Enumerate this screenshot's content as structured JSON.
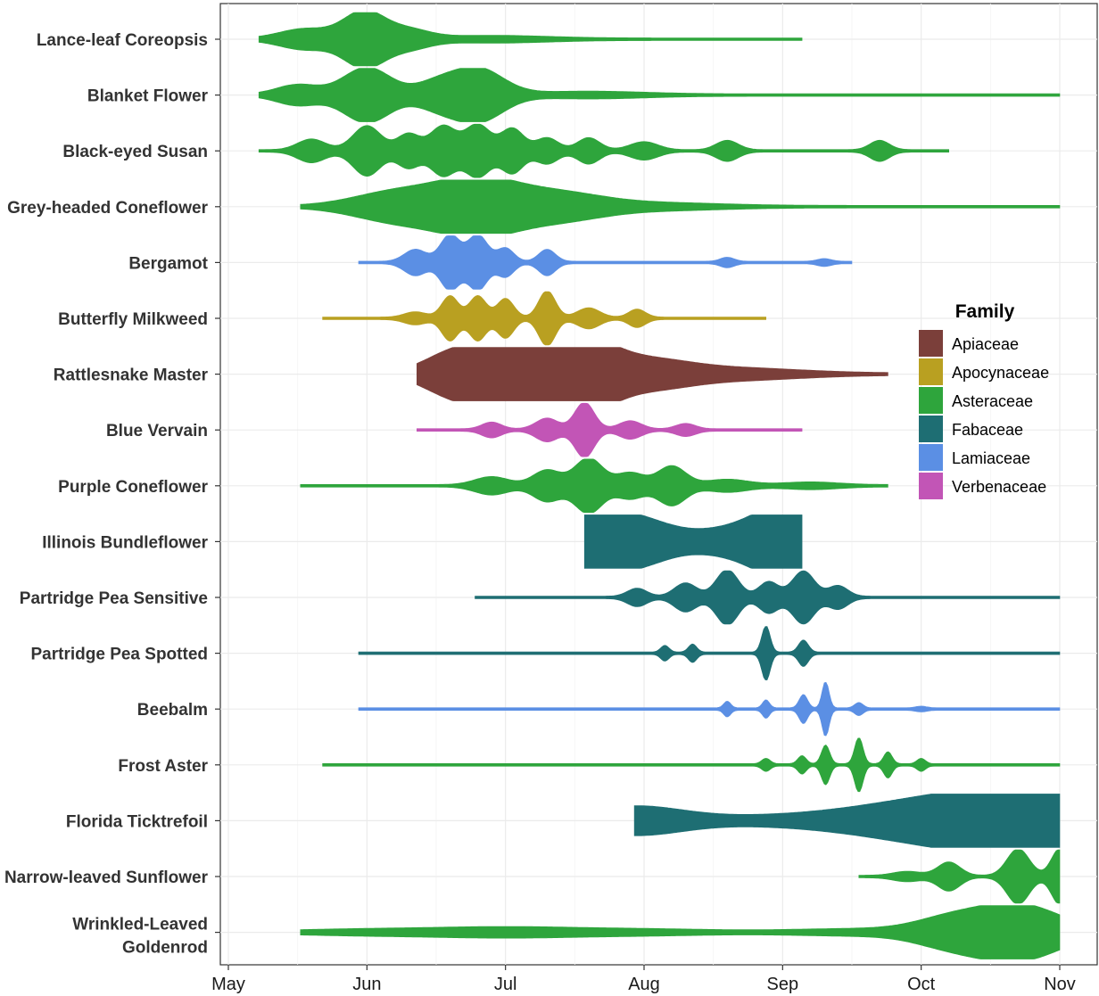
{
  "chart_data": {
    "type": "violin",
    "title": "",
    "xlabel": "",
    "ylabel": "",
    "x_ticks": [
      "May",
      "Jun",
      "Jul",
      "Aug",
      "Sep",
      "Oct",
      "Nov"
    ],
    "x_range_months": [
      0,
      6
    ],
    "grid": true,
    "legend": {
      "title": "Family",
      "placement": "right",
      "entries": [
        {
          "name": "Apiaceae",
          "color": "#7b3f3a"
        },
        {
          "name": "Apocynaceae",
          "color": "#b9a021"
        },
        {
          "name": "Asteraceae",
          "color": "#2ea53c"
        },
        {
          "name": "Fabaceae",
          "color": "#1e6e73"
        },
        {
          "name": "Lamiaceae",
          "color": "#5b8fe4"
        },
        {
          "name": "Verbenaceae",
          "color": "#c255b6"
        }
      ]
    },
    "series": [
      {
        "label": "Lance-leaf Coreopsis",
        "family": "Asteraceae",
        "start": 0.22,
        "end": 4.14,
        "peaks": [
          [
            0.55,
            0.35,
            0.18
          ],
          [
            0.98,
            1.0,
            0.15
          ],
          [
            1.3,
            0.3,
            0.15
          ],
          [
            1.9,
            0.1,
            0.4
          ]
        ]
      },
      {
        "label": "Blanket Flower",
        "family": "Asteraceae",
        "start": 0.22,
        "end": 6.0,
        "peaks": [
          [
            0.5,
            0.35,
            0.15
          ],
          [
            1.0,
            1.0,
            0.17
          ],
          [
            1.5,
            0.4,
            0.15
          ],
          [
            1.8,
            0.95,
            0.18
          ],
          [
            2.6,
            0.1,
            0.4
          ]
        ]
      },
      {
        "label": "Black-eyed Susan",
        "family": "Asteraceae",
        "start": 0.22,
        "end": 5.2,
        "peaks": [
          [
            0.6,
            0.4,
            0.1
          ],
          [
            1.0,
            0.9,
            0.1
          ],
          [
            1.3,
            0.6,
            0.08
          ],
          [
            1.55,
            0.9,
            0.09
          ],
          [
            1.8,
            0.95,
            0.09
          ],
          [
            2.05,
            0.8,
            0.08
          ],
          [
            2.3,
            0.45,
            0.08
          ],
          [
            2.6,
            0.45,
            0.08
          ],
          [
            3.0,
            0.3,
            0.1
          ],
          [
            3.6,
            0.35,
            0.08
          ],
          [
            4.7,
            0.35,
            0.07
          ]
        ]
      },
      {
        "label": "Grey-headed Coneflower",
        "family": "Asteraceae",
        "start": 0.52,
        "end": 6.0,
        "peaks": [
          [
            1.2,
            0.5,
            0.3
          ],
          [
            1.8,
            1.0,
            0.3
          ],
          [
            2.4,
            0.4,
            0.3
          ],
          [
            3.0,
            0.12,
            0.5
          ]
        ]
      },
      {
        "label": "Bergamot",
        "family": "Lamiaceae",
        "start": 0.94,
        "end": 4.5,
        "peaks": [
          [
            1.35,
            0.45,
            0.08
          ],
          [
            1.6,
            1.0,
            0.07
          ],
          [
            1.8,
            1.0,
            0.07
          ],
          [
            2.0,
            0.5,
            0.06
          ],
          [
            2.3,
            0.45,
            0.06
          ],
          [
            3.6,
            0.15,
            0.05
          ],
          [
            4.3,
            0.1,
            0.05
          ]
        ]
      },
      {
        "label": "Butterfly Milkweed",
        "family": "Apocynaceae",
        "start": 0.68,
        "end": 3.88,
        "peaks": [
          [
            1.35,
            0.2,
            0.08
          ],
          [
            1.6,
            0.8,
            0.06
          ],
          [
            1.8,
            0.8,
            0.06
          ],
          [
            2.0,
            0.7,
            0.06
          ],
          [
            2.3,
            1.0,
            0.06
          ],
          [
            2.6,
            0.35,
            0.08
          ],
          [
            2.95,
            0.3,
            0.06
          ]
        ]
      },
      {
        "label": "Rattlesnake Master",
        "family": "Apiaceae",
        "start": 1.36,
        "end": 4.76,
        "peaks": [
          [
            1.6,
            0.7,
            0.2
          ],
          [
            1.9,
            0.85,
            0.18
          ],
          [
            2.3,
            0.7,
            0.2
          ],
          [
            2.6,
            0.95,
            0.2
          ],
          [
            3.0,
            0.45,
            0.3
          ],
          [
            3.6,
            0.2,
            0.5
          ]
        ]
      },
      {
        "label": "Blue Vervain",
        "family": "Verbenaceae",
        "start": 1.36,
        "end": 4.14,
        "peaks": [
          [
            1.9,
            0.25,
            0.07
          ],
          [
            2.3,
            0.4,
            0.08
          ],
          [
            2.57,
            1.0,
            0.07
          ],
          [
            2.9,
            0.3,
            0.08
          ],
          [
            3.3,
            0.2,
            0.07
          ]
        ]
      },
      {
        "label": "Purple Coneflower",
        "family": "Asteraceae",
        "start": 0.52,
        "end": 4.76,
        "peaks": [
          [
            1.9,
            0.3,
            0.12
          ],
          [
            2.3,
            0.55,
            0.1
          ],
          [
            2.6,
            1.0,
            0.1
          ],
          [
            2.9,
            0.45,
            0.1
          ],
          [
            3.2,
            0.7,
            0.1
          ],
          [
            3.6,
            0.2,
            0.15
          ],
          [
            4.2,
            0.1,
            0.2
          ]
        ]
      },
      {
        "label": "Illinois Bundleflower",
        "family": "Fabaceae",
        "start": 2.57,
        "end": 4.14,
        "peaks": [
          [
            2.57,
            1.0,
            0.3
          ],
          [
            3.0,
            0.55,
            0.25
          ],
          [
            3.5,
            0.2,
            0.2
          ],
          [
            3.9,
            0.6,
            0.25
          ],
          [
            4.14,
            1.0,
            0.25
          ]
        ]
      },
      {
        "label": "Partridge Pea Sensitive",
        "family": "Fabaceae",
        "start": 1.78,
        "end": 6.0,
        "peaks": [
          [
            2.95,
            0.3,
            0.07
          ],
          [
            3.3,
            0.5,
            0.08
          ],
          [
            3.6,
            1.0,
            0.08
          ],
          [
            3.9,
            0.55,
            0.07
          ],
          [
            4.15,
            0.95,
            0.08
          ],
          [
            4.4,
            0.4,
            0.07
          ]
        ]
      },
      {
        "label": "Partridge Pea Spotted",
        "family": "Fabaceae",
        "start": 0.94,
        "end": 6.0,
        "peaks": [
          [
            3.15,
            0.25,
            0.03
          ],
          [
            3.35,
            0.3,
            0.03
          ],
          [
            3.88,
            1.0,
            0.03
          ],
          [
            4.15,
            0.45,
            0.035
          ]
        ]
      },
      {
        "label": "Beebalm",
        "family": "Lamiaceae",
        "start": 0.94,
        "end": 6.0,
        "peaks": [
          [
            3.6,
            0.25,
            0.025
          ],
          [
            3.88,
            0.3,
            0.025
          ],
          [
            4.15,
            0.5,
            0.03
          ],
          [
            4.31,
            1.0,
            0.025
          ],
          [
            4.55,
            0.2,
            0.03
          ],
          [
            5.0,
            0.06,
            0.04
          ]
        ]
      },
      {
        "label": "Frost Aster",
        "family": "Asteraceae",
        "start": 0.68,
        "end": 6.0,
        "peaks": [
          [
            3.88,
            0.2,
            0.03
          ],
          [
            4.14,
            0.3,
            0.03
          ],
          [
            4.31,
            0.7,
            0.03
          ],
          [
            4.55,
            1.0,
            0.03
          ],
          [
            4.76,
            0.45,
            0.03
          ],
          [
            5.0,
            0.2,
            0.03
          ]
        ]
      },
      {
        "label": "Florida Ticktrefoil",
        "family": "Fabaceae",
        "start": 2.93,
        "end": 6.0,
        "peaks": [
          [
            2.93,
            0.5,
            0.35
          ],
          [
            3.7,
            0.08,
            0.4
          ],
          [
            4.6,
            0.3,
            0.5
          ],
          [
            5.4,
            0.9,
            0.5
          ],
          [
            6.0,
            1.05,
            0.35
          ]
        ]
      },
      {
        "label": "Narrow-leaved Sunflower",
        "family": "Asteraceae",
        "start": 4.55,
        "end": 6.0,
        "peaks": [
          [
            5.2,
            0.5,
            0.08
          ],
          [
            5.7,
            1.0,
            0.08
          ],
          [
            6.0,
            1.0,
            0.06
          ],
          [
            4.9,
            0.15,
            0.1
          ]
        ]
      },
      {
        "label": "Wrinkled-Leaved\nGoldenrod",
        "family": "Asteraceae",
        "start": 0.52,
        "end": 6.0,
        "peaks": [
          [
            1.0,
            0.08,
            0.5
          ],
          [
            2.0,
            0.15,
            0.5
          ],
          [
            3.0,
            0.08,
            0.5
          ],
          [
            4.6,
            0.1,
            0.5
          ],
          [
            5.2,
            0.4,
            0.25
          ],
          [
            5.7,
            1.0,
            0.3
          ]
        ]
      }
    ]
  }
}
